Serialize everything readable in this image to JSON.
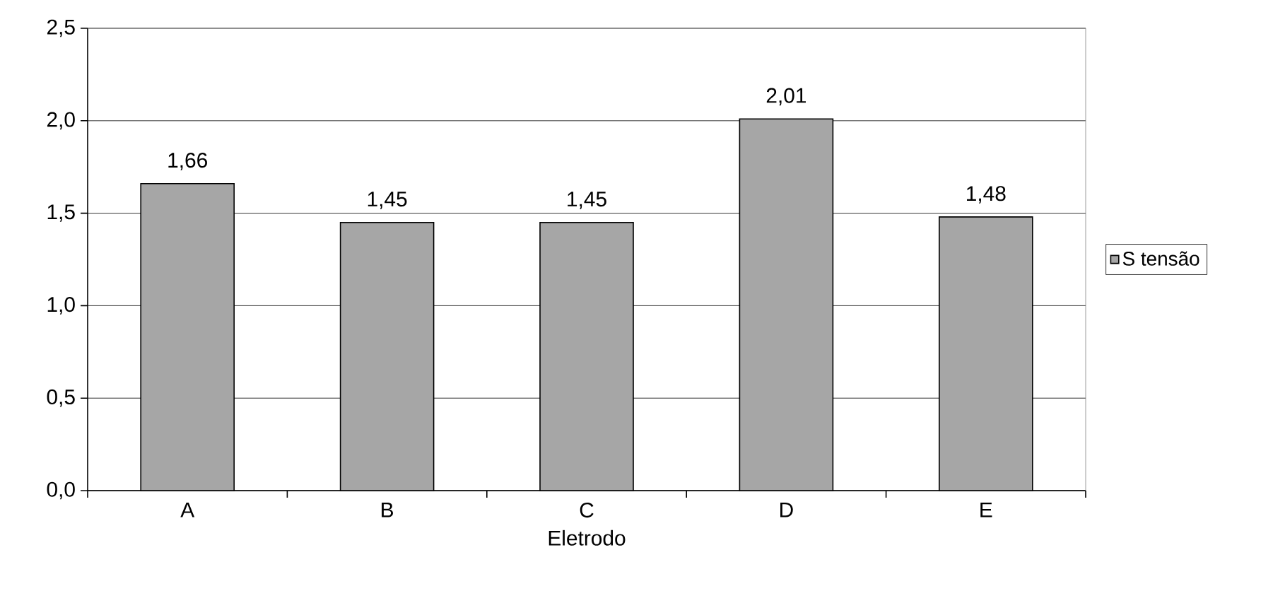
{
  "chart_data": {
    "type": "bar",
    "xlabel": "Eletrodo",
    "categories": [
      "A",
      "B",
      "C",
      "D",
      "E"
    ],
    "series": [
      {
        "name": "S tensão",
        "color": "#a6a6a6",
        "values": [
          1.66,
          1.45,
          1.45,
          2.01,
          1.48
        ],
        "value_labels": [
          "1,66",
          "1,45",
          "1,45",
          "2,01",
          "1,48"
        ]
      }
    ],
    "ylim": [
      0,
      2.5
    ],
    "yticks": [
      {
        "value": 0,
        "label": "0,0"
      },
      {
        "value": 0.5,
        "label": "0,5"
      },
      {
        "value": 1,
        "label": "1,0"
      },
      {
        "value": 1.5,
        "label": "1,5"
      },
      {
        "value": 2,
        "label": "2,0"
      },
      {
        "value": 2.5,
        "label": "2,5"
      }
    ],
    "grid": "y",
    "legend": "right"
  }
}
